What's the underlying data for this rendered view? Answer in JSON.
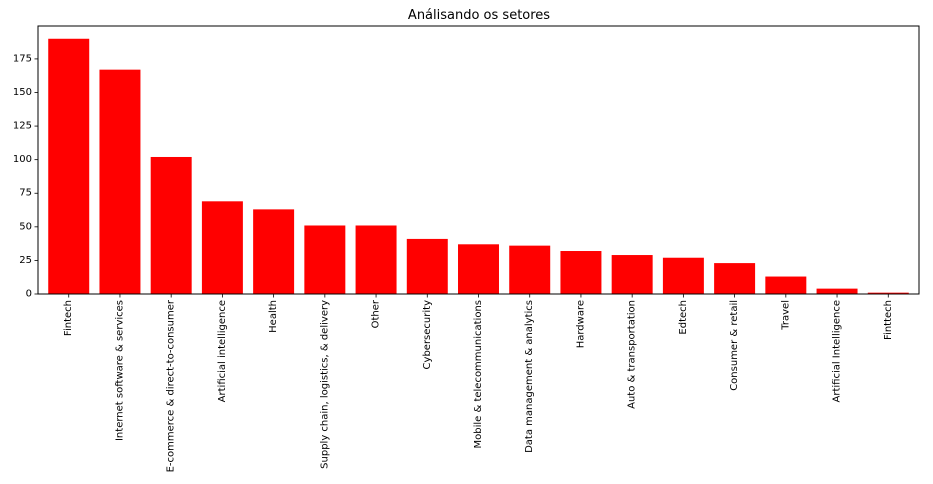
{
  "chart_data": {
    "type": "bar",
    "title": "Análisando os setores",
    "xlabel": "",
    "ylabel": "",
    "categories": [
      "Fintech",
      "Internet software & services",
      "E-commerce & direct-to-consumer",
      "Artificial intelligence",
      "Health",
      "Supply chain, logistics, & delivery",
      "Other",
      "Cybersecurity",
      "Mobile & telecommunications",
      "Data management & analytics",
      "Hardware",
      "Auto & transportation",
      "Edtech",
      "Consumer & retail",
      "Travel",
      "Artificial Intelligence",
      "Finttech"
    ],
    "values": [
      190,
      167,
      102,
      69,
      63,
      51,
      51,
      41,
      37,
      36,
      32,
      29,
      27,
      23,
      13,
      4,
      1
    ],
    "ylim": [
      0,
      199.5
    ],
    "yticks": [
      0,
      25,
      50,
      75,
      100,
      125,
      150,
      175
    ],
    "grid": false,
    "bar_color": "#ff0000"
  }
}
